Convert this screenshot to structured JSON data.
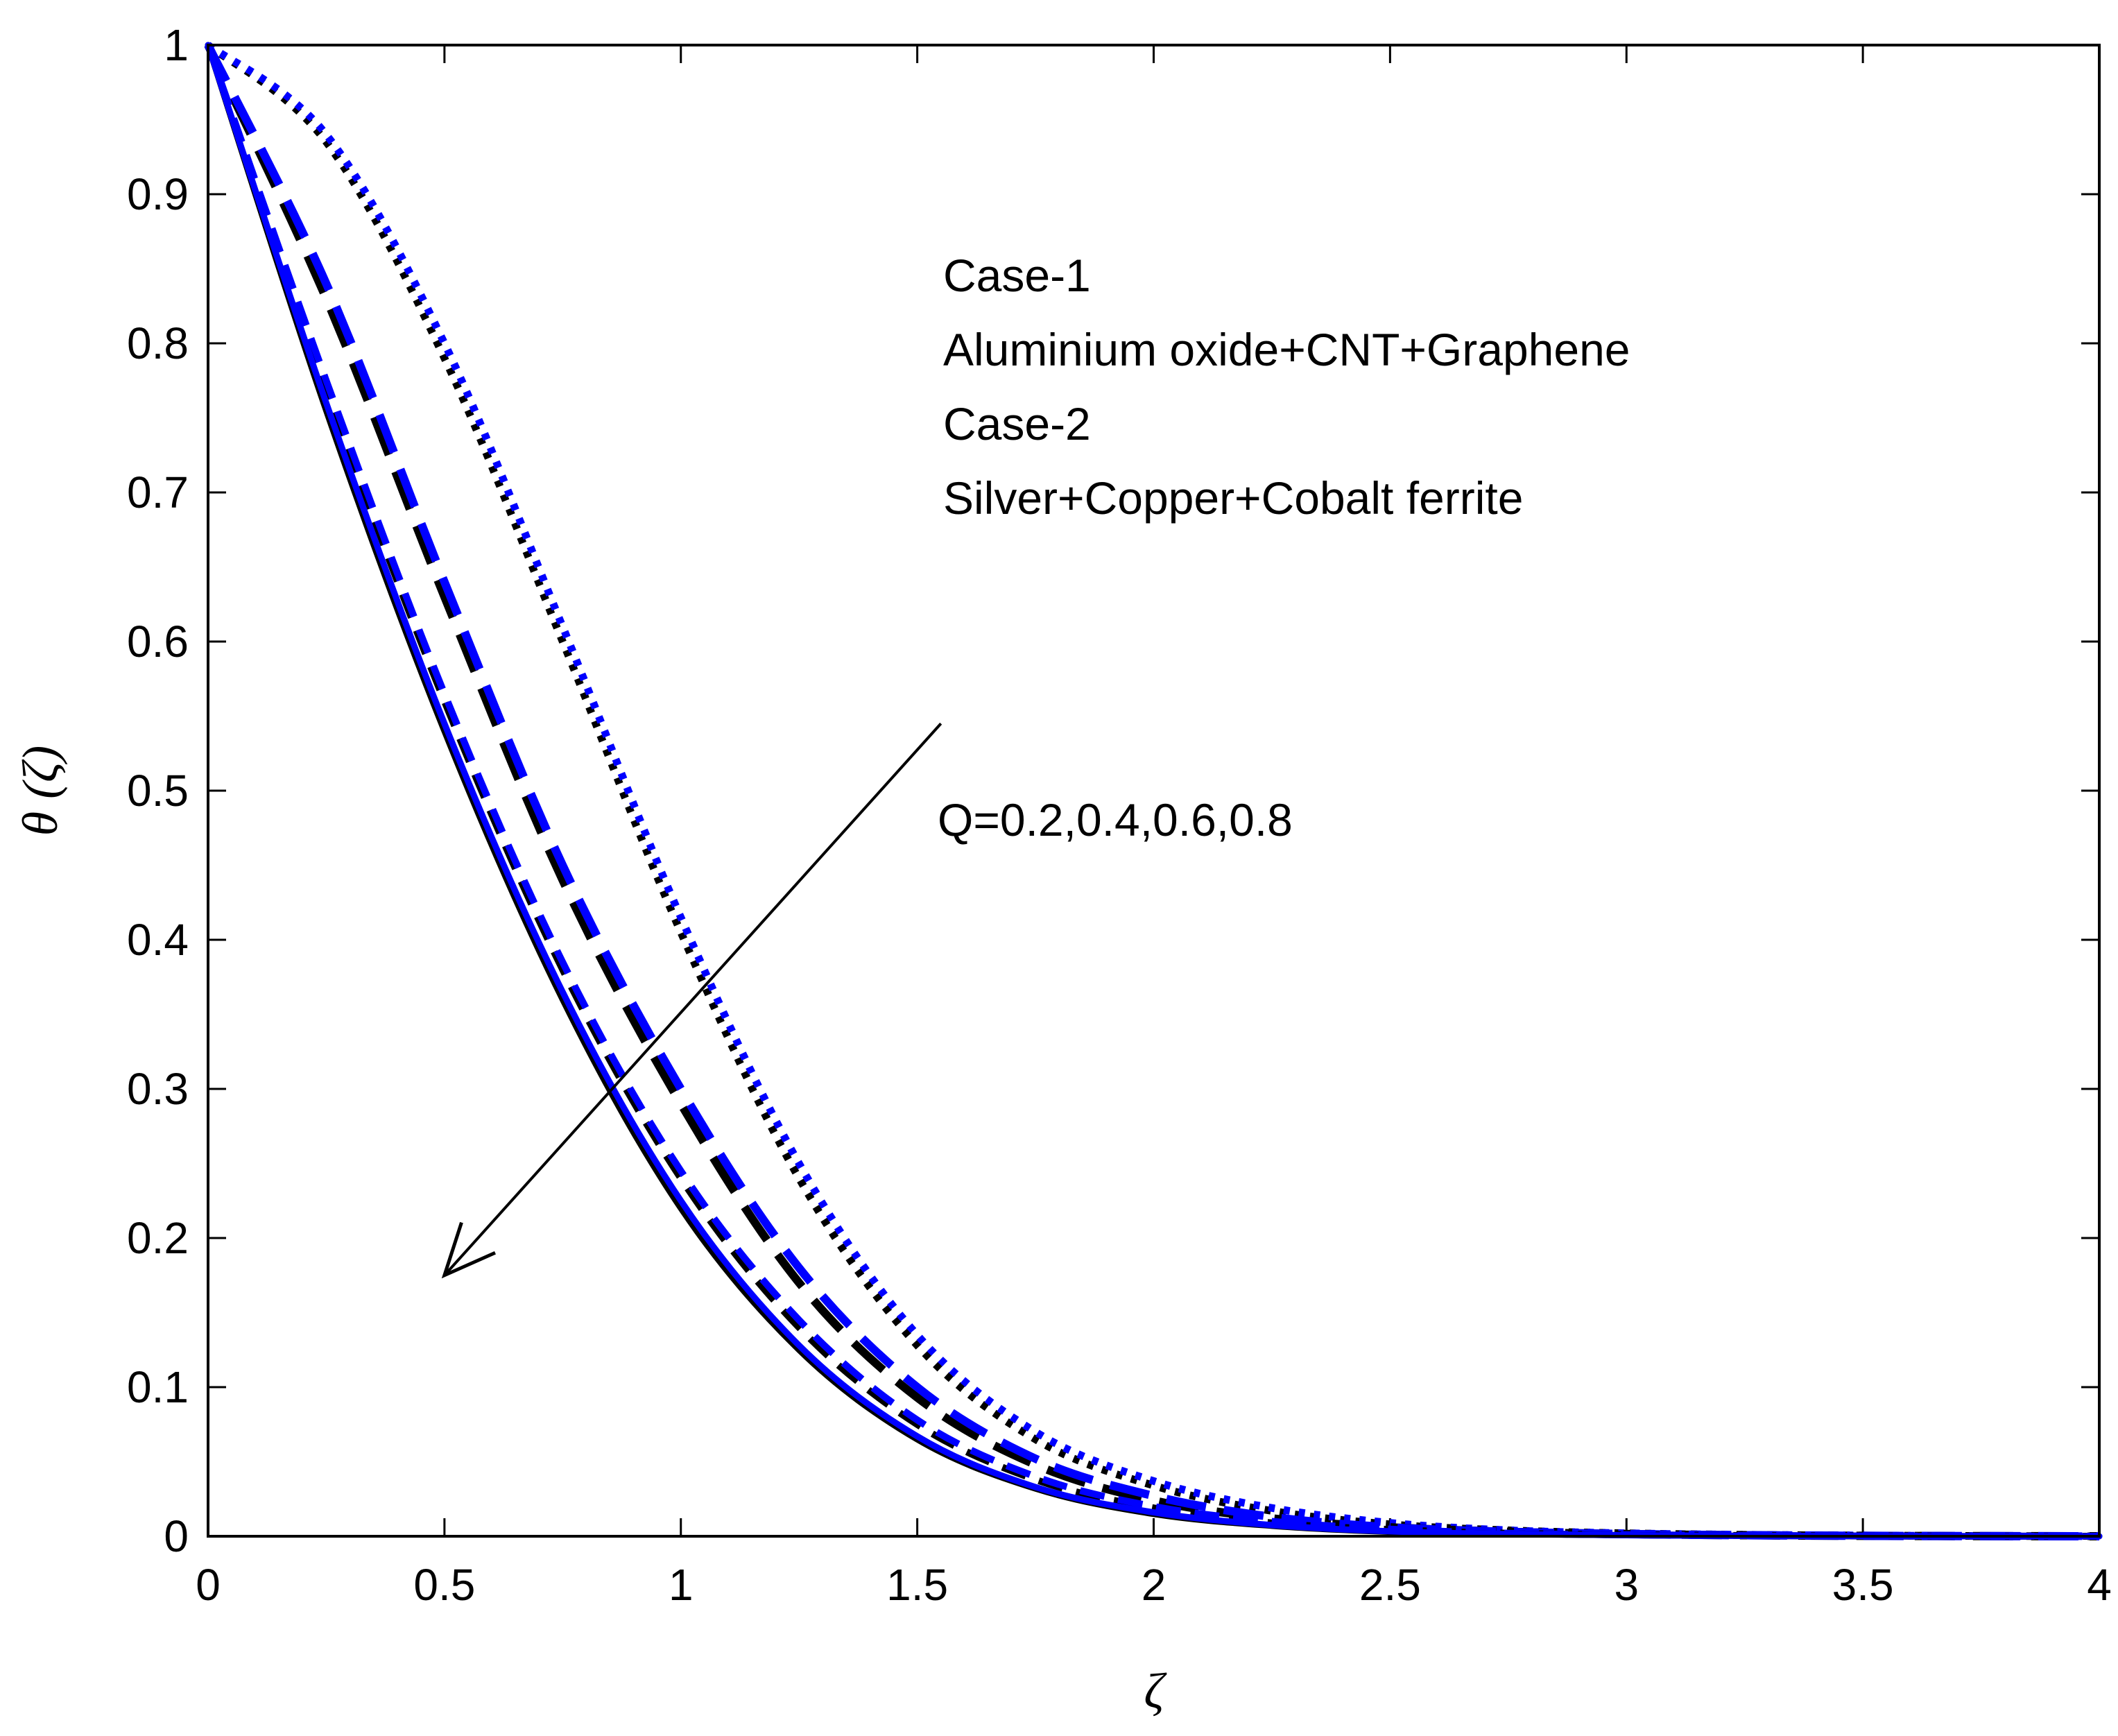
{
  "chart_data": {
    "type": "line",
    "title": "",
    "xlabel": "ζ",
    "ylabel": "θ (ζ)",
    "xlim": [
      0,
      4
    ],
    "ylim": [
      0,
      1
    ],
    "xticks": [
      "0",
      "0.5",
      "1",
      "1.5",
      "2",
      "2.5",
      "3",
      "3.5",
      "4"
    ],
    "yticks": [
      "0",
      "0.1",
      "0.2",
      "0.3",
      "0.4",
      "0.5",
      "0.6",
      "0.7",
      "0.8",
      "0.9",
      "1"
    ],
    "grid": false,
    "legend_placement": "top-center",
    "legend_lines": [
      "Case-1",
      "Aluminium oxide+CNT+Graphene",
      "Case-2",
      "Silver+Copper+Cobalt ferrite"
    ],
    "annotation": {
      "text": "Q=0.2,0.4,0.6,0.8",
      "arrow_from": [
        1.55,
        0.545
      ],
      "arrow_to": [
        0.5,
        0.175
      ]
    },
    "colors": {
      "case1": "#000000",
      "case2": "#0000ff"
    },
    "x": [
      0,
      0.25,
      0.5,
      0.75,
      1,
      1.25,
      1.5,
      1.75,
      2,
      2.25,
      2.5,
      2.75,
      3,
      3.25,
      3.5,
      3.75,
      4
    ],
    "series": [
      {
        "case": "Case-1",
        "Q": 0.2,
        "style": "dotted",
        "color": "#000000",
        "values": [
          1,
          0.935,
          0.79,
          0.6,
          0.405,
          0.24,
          0.128,
          0.065,
          0.034,
          0.017,
          0.008,
          0.004,
          0.002,
          0.001,
          0.0005,
          0.0002,
          0
        ]
      },
      {
        "case": "Case-2",
        "Q": 0.2,
        "style": "dotted",
        "color": "#0000ff",
        "values": [
          1,
          0.94,
          0.8,
          0.61,
          0.415,
          0.25,
          0.135,
          0.07,
          0.037,
          0.019,
          0.009,
          0.004,
          0.002,
          0.001,
          0.0005,
          0.0002,
          0
        ]
      },
      {
        "case": "Case-1",
        "Q": 0.4,
        "style": "long-dash",
        "color": "#000000",
        "values": [
          1,
          0.83,
          0.63,
          0.44,
          0.29,
          0.17,
          0.093,
          0.048,
          0.024,
          0.012,
          0.006,
          0.003,
          0.0015,
          0.0007,
          0.0003,
          0.0001,
          0
        ]
      },
      {
        "case": "Case-2",
        "Q": 0.4,
        "style": "long-dash",
        "color": "#0000ff",
        "values": [
          1,
          0.84,
          0.64,
          0.45,
          0.3,
          0.18,
          0.1,
          0.052,
          0.027,
          0.013,
          0.006,
          0.003,
          0.0015,
          0.0007,
          0.0003,
          0.0001,
          0
        ]
      },
      {
        "case": "Case-1",
        "Q": 0.6,
        "style": "dashed",
        "color": "#000000",
        "values": [
          1,
          0.77,
          0.56,
          0.38,
          0.24,
          0.14,
          0.075,
          0.038,
          0.019,
          0.009,
          0.0045,
          0.002,
          0.001,
          0.0005,
          0.0002,
          0.0001,
          0
        ]
      },
      {
        "case": "Case-2",
        "Q": 0.6,
        "style": "dashed",
        "color": "#0000ff",
        "values": [
          1,
          0.775,
          0.565,
          0.385,
          0.245,
          0.145,
          0.078,
          0.04,
          0.02,
          0.01,
          0.0048,
          0.002,
          0.001,
          0.0005,
          0.0002,
          0.0001,
          0
        ]
      },
      {
        "case": "Case-1",
        "Q": 0.8,
        "style": "solid",
        "color": "#000000",
        "values": [
          1,
          0.755,
          0.54,
          0.36,
          0.22,
          0.125,
          0.065,
          0.032,
          0.015,
          0.007,
          0.003,
          0.0015,
          0.0007,
          0.0003,
          0.0001,
          5e-05,
          0
        ]
      },
      {
        "case": "Case-2",
        "Q": 0.8,
        "style": "solid",
        "color": "#0000ff",
        "values": [
          1,
          0.76,
          0.545,
          0.365,
          0.225,
          0.128,
          0.067,
          0.033,
          0.016,
          0.0075,
          0.0033,
          0.0015,
          0.0007,
          0.0003,
          0.0001,
          5e-05,
          0
        ]
      }
    ]
  }
}
